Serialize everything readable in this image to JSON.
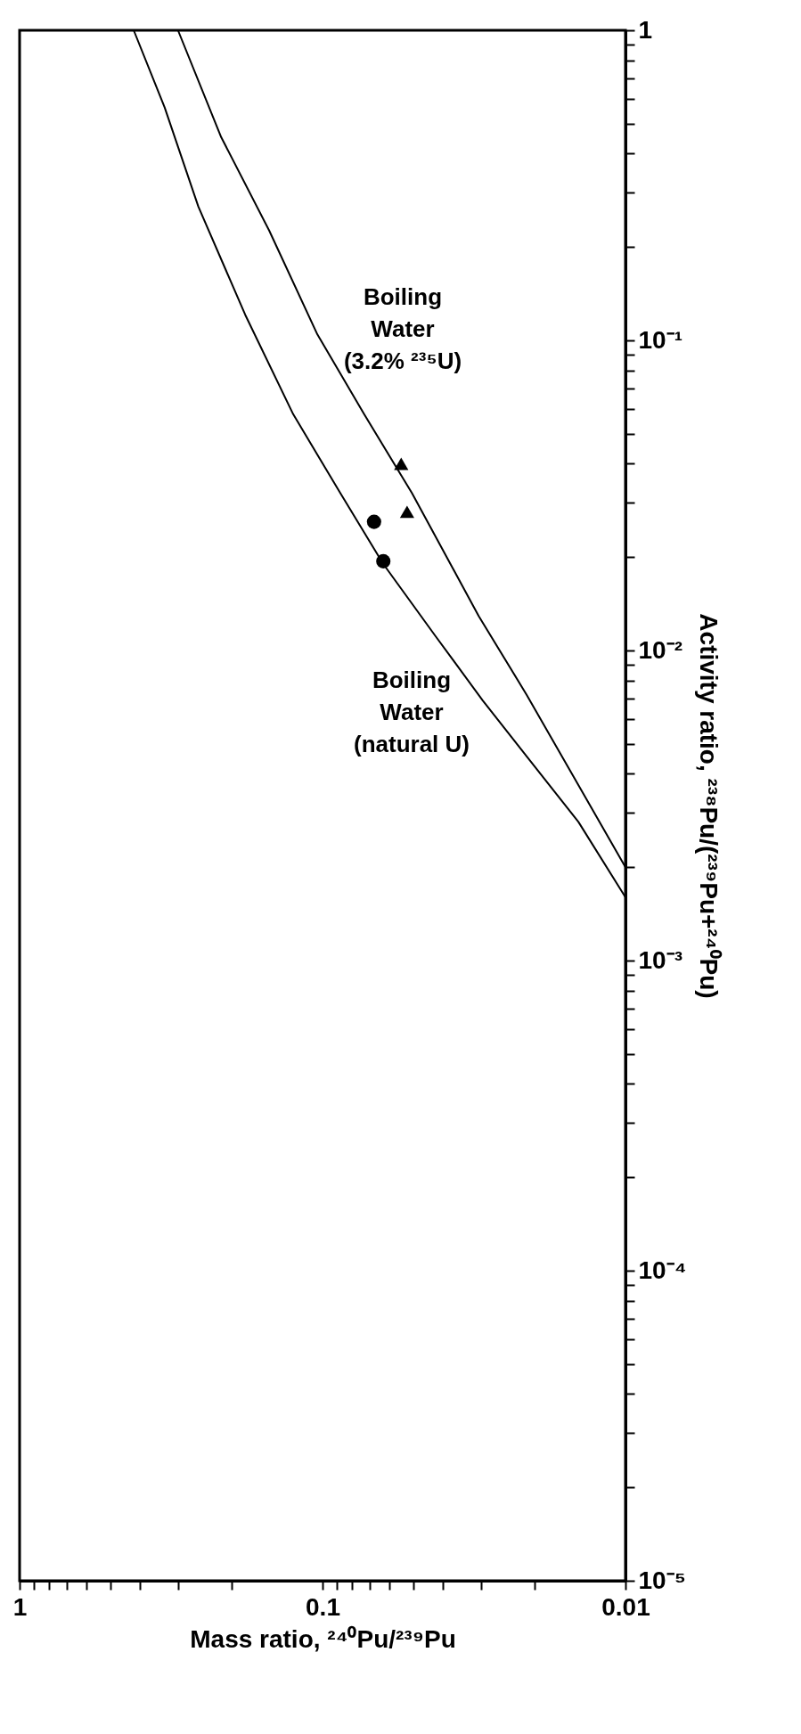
{
  "chart_data": {
    "type": "line",
    "xlabel": "Mass ratio, ²⁴⁰Pu/²³⁹Pu",
    "ylabel": "Activity ratio, ²³⁸Pu/(²³⁹Pu+²⁴⁰Pu)",
    "log": "xy",
    "grid": false,
    "line_style": "solid",
    "xlim": [
      1,
      0.01
    ],
    "ylim": [
      1e-05,
      1
    ],
    "xticks": [
      1,
      {
        "value": 0.9,
        "label": null
      },
      {
        "value": 0.8,
        "label": null
      },
      {
        "value": 0.7,
        "label": null
      },
      {
        "value": 0.6,
        "label": null
      },
      {
        "value": 0.5,
        "label": null
      },
      {
        "value": 0.4,
        "label": null
      },
      {
        "value": 0.3,
        "label": null
      },
      {
        "value": 0.2,
        "label": null
      },
      0.1,
      {
        "value": 0.09,
        "label": null
      },
      {
        "value": 0.08,
        "label": null
      },
      {
        "value": 0.07,
        "label": null
      },
      {
        "value": 0.06,
        "label": null
      },
      {
        "value": 0.05,
        "label": null
      },
      {
        "value": 0.04,
        "label": null
      },
      {
        "value": 0.03,
        "label": null
      },
      {
        "value": 0.02,
        "label": null
      },
      0.01
    ],
    "yticks": [
      1,
      {
        "value": 0.9,
        "label": null
      },
      {
        "value": 0.8,
        "label": null
      },
      {
        "value": 0.7,
        "label": null
      },
      {
        "value": 0.6,
        "label": null
      },
      {
        "value": 0.5,
        "label": null
      },
      {
        "value": 0.4,
        "label": null
      },
      {
        "value": 0.3,
        "label": null
      },
      {
        "value": 0.2,
        "label": null
      },
      {
        "value": 0.1,
        "label": "10⁻¹"
      },
      {
        "value": 0.09,
        "label": null
      },
      {
        "value": 0.08,
        "label": null
      },
      {
        "value": 0.07,
        "label": null
      },
      {
        "value": 0.06,
        "label": null
      },
      {
        "value": 0.05,
        "label": null
      },
      {
        "value": 0.04,
        "label": null
      },
      {
        "value": 0.03,
        "label": null
      },
      {
        "value": 0.02,
        "label": null
      },
      {
        "value": 0.01,
        "label": "10⁻²"
      },
      {
        "value": 0.009,
        "label": null
      },
      {
        "value": 0.008,
        "label": null
      },
      {
        "value": 0.007,
        "label": null
      },
      {
        "value": 0.006,
        "label": null
      },
      {
        "value": 0.005,
        "label": null
      },
      {
        "value": 0.004,
        "label": null
      },
      {
        "value": 0.003,
        "label": null
      },
      {
        "value": 0.002,
        "label": null
      },
      {
        "value": 0.001,
        "label": "10⁻³"
      },
      {
        "value": 0.0009,
        "label": null
      },
      {
        "value": 0.0008,
        "label": null
      },
      {
        "value": 0.0007,
        "label": null
      },
      {
        "value": 0.0006,
        "label": null
      },
      {
        "value": 0.0005,
        "label": null
      },
      {
        "value": 0.0004,
        "label": null
      },
      {
        "value": 0.0003,
        "label": null
      },
      {
        "value": 0.0002,
        "label": null
      },
      {
        "value": 0.0001,
        "label": "10⁻⁴"
      },
      {
        "value": 9e-05,
        "label": null
      },
      {
        "value": 8e-05,
        "label": null
      },
      {
        "value": 7e-05,
        "label": null
      },
      {
        "value": 6e-05,
        "label": null
      },
      {
        "value": 5e-05,
        "label": null
      },
      {
        "value": 4e-05,
        "label": null
      },
      {
        "value": 3e-05,
        "label": null
      },
      {
        "value": 2e-05,
        "label": null
      },
      {
        "value": 1e-05,
        "label": "10⁻⁵"
      }
    ],
    "series": [
      {
        "color": "#000000",
        "x": [
          0.42,
          0.332,
          0.257,
          0.18,
          0.125,
          0.0874,
          0.063,
          0.0423,
          0.0296,
          0.0206,
          0.0143,
          0.01
        ],
        "values": [
          1,
          0.564,
          0.27,
          0.121,
          0.0578,
          0.0322,
          0.019,
          0.0111,
          0.0069,
          0.0044,
          0.0028,
          0.0016
        ]
      },
      {
        "color": "#000000",
        "x": [
          0.3,
          0.216,
          0.15,
          0.104,
          0.0729,
          0.0507,
          0.0305,
          0.0212,
          0.0148,
          0.01
        ],
        "values": [
          1,
          0.452,
          0.226,
          0.1045,
          0.0578,
          0.0322,
          0.0129,
          0.0072,
          0.0039,
          0.002
        ]
      },
      {
        "type": "scatter",
        "marker": "triangle",
        "color": "#000000",
        "x": [
          0.055,
          0.0526
        ],
        "values": [
          0.04,
          0.028
        ]
      },
      {
        "type": "scatter",
        "marker": "circle",
        "color": "#000000",
        "x": [
          0.0676,
          0.063
        ],
        "values": [
          0.026,
          0.0194
        ]
      }
    ],
    "annotations": [
      "Boiling\nWater\n(3.2% ²³⁵U)",
      "Boiling\nWater\n(natural U)"
    ]
  }
}
